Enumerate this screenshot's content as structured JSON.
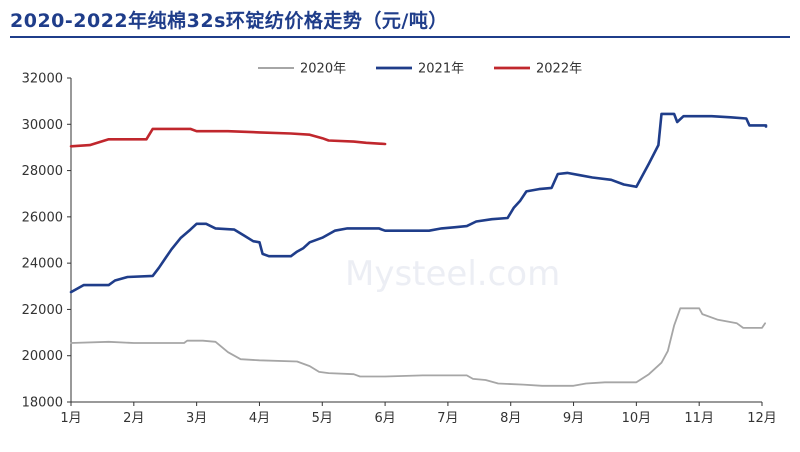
{
  "chart_data": {
    "type": "line",
    "title": "2020-2022年纯棉32s环锭纺价格走势（元/吨）",
    "xlabel": "",
    "ylabel": "",
    "ylim": [
      18000,
      32000
    ],
    "xlim": [
      1,
      12
    ],
    "yticks": [
      18000,
      20000,
      22000,
      24000,
      26000,
      28000,
      30000,
      32000
    ],
    "xticks": [
      {
        "v": 1,
        "label": "1月"
      },
      {
        "v": 2,
        "label": "2月"
      },
      {
        "v": 3,
        "label": "3月"
      },
      {
        "v": 4,
        "label": "4月"
      },
      {
        "v": 5,
        "label": "5月"
      },
      {
        "v": 6,
        "label": "6月"
      },
      {
        "v": 7,
        "label": "7月"
      },
      {
        "v": 8,
        "label": "8月"
      },
      {
        "v": 9,
        "label": "9月"
      },
      {
        "v": 10,
        "label": "10月"
      },
      {
        "v": 11,
        "label": "11月"
      },
      {
        "v": 12,
        "label": "12月"
      }
    ],
    "grid": false,
    "legend_position": "top",
    "watermark": "Mysteel.com",
    "series": [
      {
        "name": "2020年",
        "color": "#a6a6a6",
        "points": [
          [
            1.0,
            20550
          ],
          [
            1.6,
            20600
          ],
          [
            2.0,
            20550
          ],
          [
            2.8,
            20550
          ],
          [
            2.85,
            20650
          ],
          [
            3.1,
            20650
          ],
          [
            3.3,
            20600
          ],
          [
            3.5,
            20150
          ],
          [
            3.7,
            19850
          ],
          [
            4.0,
            19800
          ],
          [
            4.6,
            19750
          ],
          [
            4.8,
            19550
          ],
          [
            4.95,
            19300
          ],
          [
            5.1,
            19250
          ],
          [
            5.5,
            19200
          ],
          [
            5.6,
            19100
          ],
          [
            6.0,
            19100
          ],
          [
            6.6,
            19150
          ],
          [
            7.0,
            19150
          ],
          [
            7.3,
            19150
          ],
          [
            7.4,
            19000
          ],
          [
            7.6,
            18950
          ],
          [
            7.8,
            18800
          ],
          [
            8.2,
            18750
          ],
          [
            8.5,
            18700
          ],
          [
            8.8,
            18700
          ],
          [
            9.0,
            18700
          ],
          [
            9.2,
            18800
          ],
          [
            9.5,
            18850
          ],
          [
            10.0,
            18850
          ],
          [
            10.2,
            19200
          ],
          [
            10.4,
            19700
          ],
          [
            10.5,
            20200
          ],
          [
            10.6,
            21300
          ],
          [
            10.7,
            22050
          ],
          [
            11.0,
            22050
          ],
          [
            11.05,
            21800
          ],
          [
            11.3,
            21550
          ],
          [
            11.6,
            21400
          ],
          [
            11.7,
            21200
          ],
          [
            12.0,
            21200
          ],
          [
            12.05,
            21400
          ]
        ]
      },
      {
        "name": "2021年",
        "color": "#1f3d8a",
        "points": [
          [
            1.0,
            22750
          ],
          [
            1.2,
            23050
          ],
          [
            1.6,
            23050
          ],
          [
            1.7,
            23250
          ],
          [
            1.9,
            23400
          ],
          [
            2.3,
            23450
          ],
          [
            2.4,
            23800
          ],
          [
            2.5,
            24200
          ],
          [
            2.6,
            24600
          ],
          [
            2.75,
            25100
          ],
          [
            2.9,
            25450
          ],
          [
            3.0,
            25700
          ],
          [
            3.15,
            25700
          ],
          [
            3.3,
            25500
          ],
          [
            3.6,
            25450
          ],
          [
            3.75,
            25200
          ],
          [
            3.9,
            24950
          ],
          [
            4.0,
            24900
          ],
          [
            4.05,
            24400
          ],
          [
            4.15,
            24300
          ],
          [
            4.5,
            24300
          ],
          [
            4.6,
            24500
          ],
          [
            4.7,
            24650
          ],
          [
            4.8,
            24900
          ],
          [
            5.0,
            25100
          ],
          [
            5.2,
            25400
          ],
          [
            5.4,
            25500
          ],
          [
            5.9,
            25500
          ],
          [
            6.0,
            25400
          ],
          [
            6.7,
            25400
          ],
          [
            6.9,
            25500
          ],
          [
            7.1,
            25550
          ],
          [
            7.3,
            25600
          ],
          [
            7.45,
            25800
          ],
          [
            7.7,
            25900
          ],
          [
            7.95,
            25950
          ],
          [
            8.05,
            26400
          ],
          [
            8.15,
            26700
          ],
          [
            8.25,
            27100
          ],
          [
            8.45,
            27200
          ],
          [
            8.65,
            27250
          ],
          [
            8.75,
            27850
          ],
          [
            8.9,
            27900
          ],
          [
            9.1,
            27800
          ],
          [
            9.3,
            27700
          ],
          [
            9.6,
            27600
          ],
          [
            9.8,
            27400
          ],
          [
            10.0,
            27300
          ],
          [
            10.2,
            28300
          ],
          [
            10.35,
            29100
          ],
          [
            10.4,
            30450
          ],
          [
            10.6,
            30450
          ],
          [
            10.65,
            30100
          ],
          [
            10.75,
            30350
          ],
          [
            11.2,
            30350
          ],
          [
            11.5,
            30300
          ],
          [
            11.75,
            30250
          ],
          [
            11.8,
            29950
          ],
          [
            12.1,
            29950
          ],
          [
            12.25,
            29900
          ]
        ]
      },
      {
        "name": "2022年",
        "color": "#c0272d",
        "points": [
          [
            1.0,
            29050
          ],
          [
            1.3,
            29100
          ],
          [
            1.6,
            29350
          ],
          [
            2.0,
            29350
          ],
          [
            2.2,
            29350
          ],
          [
            2.3,
            29800
          ],
          [
            2.5,
            29800
          ],
          [
            2.9,
            29800
          ],
          [
            3.0,
            29700
          ],
          [
            3.5,
            29700
          ],
          [
            4.0,
            29650
          ],
          [
            4.5,
            29600
          ],
          [
            4.8,
            29550
          ],
          [
            5.0,
            29400
          ],
          [
            5.1,
            29300
          ],
          [
            5.5,
            29250
          ],
          [
            5.7,
            29200
          ],
          [
            6.0,
            29150
          ]
        ]
      }
    ]
  }
}
